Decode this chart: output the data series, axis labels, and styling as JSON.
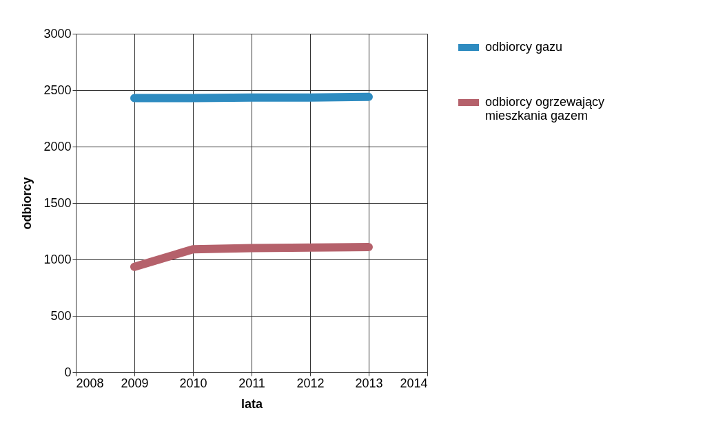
{
  "chart_data": {
    "type": "line",
    "xlabel": "lata",
    "ylabel": "odbiorcy",
    "x": [
      2009,
      2010,
      2011,
      2012,
      2013
    ],
    "series": [
      {
        "name": "odbiorcy gazu",
        "color": "#2e8bc0",
        "values": [
          2430,
          2430,
          2435,
          2435,
          2440
        ]
      },
      {
        "name": "odbiorcy ogrzewający mieszkania gazem",
        "color": "#b5616b",
        "values": [
          935,
          1090,
          1100,
          1105,
          1110
        ]
      }
    ],
    "xlim": [
      2008,
      2014
    ],
    "xticks": [
      2008,
      2009,
      2010,
      2011,
      2012,
      2013,
      2014
    ],
    "ylim": [
      0,
      3000
    ],
    "yticks": [
      0,
      500,
      1000,
      1500,
      2000,
      2500,
      3000
    ],
    "grid": true,
    "legend": "right",
    "line_style": "solid"
  }
}
